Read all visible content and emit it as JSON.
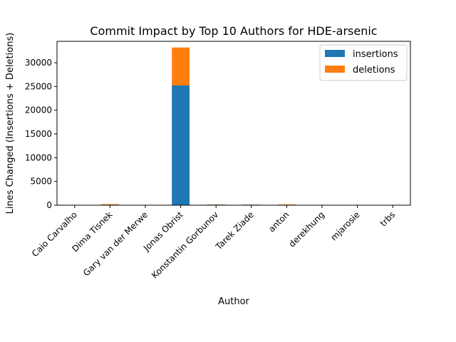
{
  "chart_data": {
    "type": "bar",
    "stacked": true,
    "title": "Commit Impact by Top 10 Authors for HDE-arsenic",
    "xlabel": "Author",
    "ylabel": "Lines Changed (Insertions + Deletions)",
    "categories": [
      "Caio Carvalho",
      "Dima Tisnek",
      "Gary van der Merwe",
      "Jonas Obrist",
      "Konstantin Gorbunov",
      "Tarek Ziade",
      "anton",
      "derekhung",
      "mjarosie",
      "trbs"
    ],
    "series": [
      {
        "name": "insertions",
        "color": "#1f77b4",
        "values": [
          10,
          60,
          5,
          25200,
          120,
          110,
          40,
          5,
          3,
          5
        ]
      },
      {
        "name": "deletions",
        "color": "#ff7f0e",
        "values": [
          5,
          160,
          3,
          8000,
          40,
          30,
          110,
          3,
          2,
          2
        ]
      }
    ],
    "ylim": [
      0,
      34500
    ],
    "yticks": [
      0,
      5000,
      10000,
      15000,
      20000,
      25000,
      30000
    ],
    "grid": false,
    "legend_position": "upper right"
  }
}
